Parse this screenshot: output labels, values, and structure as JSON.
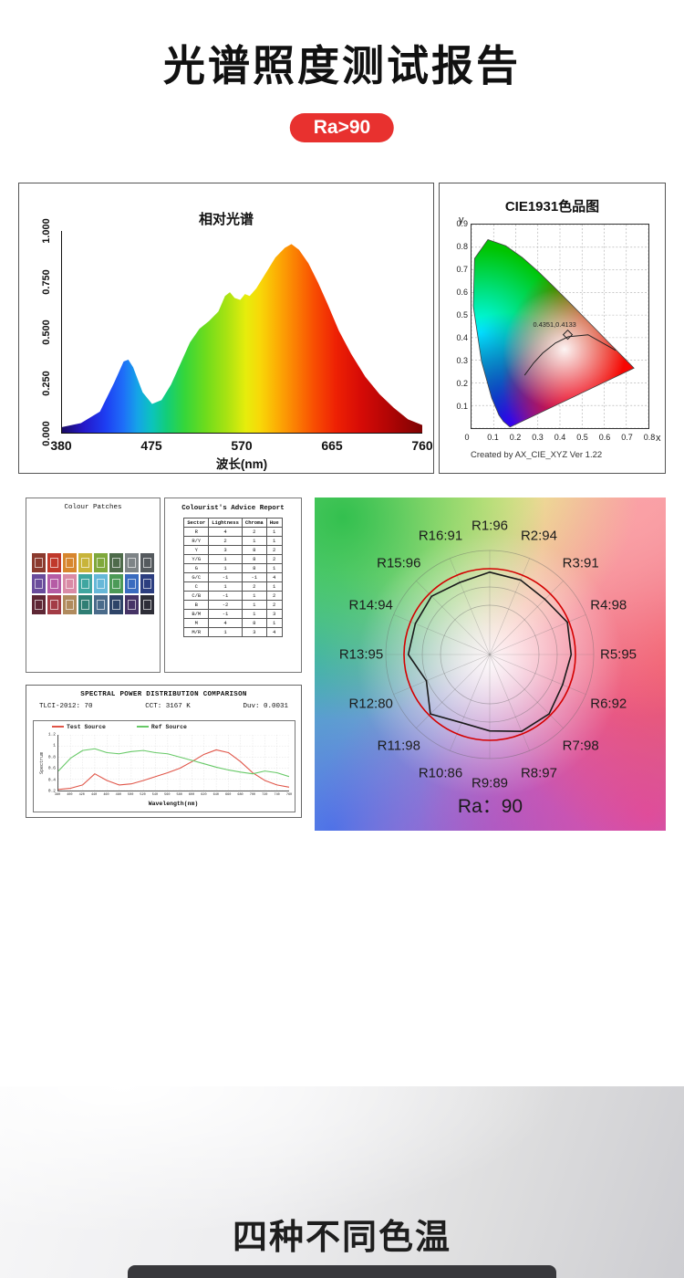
{
  "page": {
    "title": "光谱照度测试报告",
    "badge": "Ra>90",
    "bottom_title": "四种不同色温"
  },
  "spectrum_panel": {
    "title": "相对光谱",
    "xlabel": "波长(nm)",
    "x_ticks": [
      "380",
      "475",
      "570",
      "665",
      "760"
    ],
    "y_ticks": [
      "1.000",
      "0.750",
      "0.500",
      "0.250",
      "0.000"
    ]
  },
  "cie_panel": {
    "title": "CIE1931色品图",
    "y_axis_letter": "y",
    "x_axis_letter": "x",
    "y_ticks": [
      "0.9",
      "0.8",
      "0.7",
      "0.6",
      "0.5",
      "0.4",
      "0.3",
      "0.2",
      "0.1"
    ],
    "origin_tick": "0",
    "x_ticks": [
      "0.1",
      "0.2",
      "0.3",
      "0.4",
      "0.5",
      "0.6",
      "0.7",
      "0.8"
    ],
    "point_label": "0.4351,0.4133",
    "credit": "Created by AX_CIE_XYZ Ver 1.22"
  },
  "colour_patches": {
    "title": "Colour Patches",
    "colors": [
      "#8b3a2e",
      "#c0392b",
      "#d7862e",
      "#c8b43a",
      "#7fa83c",
      "#4e6b4a",
      "#7e8487",
      "#555a5e",
      "#6a4c9c",
      "#b55ca5",
      "#d98ba6",
      "#3fa6a0",
      "#66b8d8",
      "#4c9a57",
      "#3a6bbf",
      "#2c3e80",
      "#5e2735",
      "#a33c46",
      "#b08b5e",
      "#2f7e74",
      "#4a6b8a",
      "#2e4468",
      "#463366",
      "#2e2e38"
    ]
  },
  "advice_report": {
    "title": "Colourist's Advice Report",
    "headers": [
      "Sector",
      "Lightness",
      "Chroma",
      "Hue"
    ],
    "rows": [
      [
        "R",
        "4",
        "2",
        "1"
      ],
      [
        "R/Y",
        "2",
        "1",
        "1"
      ],
      [
        "Y",
        "3",
        "8",
        "2"
      ],
      [
        "Y/G",
        "1",
        "8",
        "2"
      ],
      [
        "G",
        "1",
        "8",
        "1"
      ],
      [
        "G/C",
        "-1",
        "-1",
        "4"
      ],
      [
        "C",
        "1",
        "2",
        "1"
      ],
      [
        "C/B",
        "-1",
        "1",
        "2"
      ],
      [
        "B",
        "-2",
        "1",
        "2"
      ],
      [
        "B/M",
        "-1",
        "1",
        "3"
      ],
      [
        "M",
        "4",
        "8",
        "1"
      ],
      [
        "M/R",
        "1",
        "3",
        "4"
      ]
    ]
  },
  "radar_panel": {
    "ra_label": "Ra：90",
    "ref_color": "#d40000",
    "test_color": "#1a1a1a",
    "labels": [
      "R1:96",
      "R2:94",
      "R3:91",
      "R4:98",
      "R5:95",
      "R6:92",
      "R7:98",
      "R8:97",
      "R9:89",
      "R10:86",
      "R11:98",
      "R12:80",
      "R13:95",
      "R14:94",
      "R15:96",
      "R16:91"
    ],
    "values": [
      96,
      94,
      91,
      98,
      95,
      92,
      98,
      97,
      89,
      86,
      98,
      80,
      95,
      94,
      96,
      91
    ]
  },
  "spd_panel": {
    "title": "SPECTRAL POWER DISTRIBUTION COMPARISON",
    "stats": [
      "TLCI-2012: 70",
      "CCT: 3167 K",
      "Duv: 0.0031"
    ],
    "legend": [
      {
        "name": "Test Source",
        "color": "#e05548"
      },
      {
        "name": "Ref Source",
        "color": "#67c967"
      }
    ],
    "ylabel": "Spectrum",
    "xlabel": "Wavelength(nm)",
    "y_ticks": [
      "1.2",
      "1",
      "0.8",
      "0.6",
      "0.4",
      "0.2"
    ],
    "x_ticks": [
      "380",
      "400",
      "420",
      "440",
      "460",
      "480",
      "500",
      "520",
      "540",
      "560",
      "580",
      "600",
      "620",
      "640",
      "660",
      "680",
      "700",
      "720",
      "740",
      "760"
    ]
  },
  "chart_data": [
    {
      "id": "relative-spectrum",
      "type": "area",
      "title": "相对光谱",
      "xlabel": "波长(nm)",
      "x": [
        380,
        400,
        420,
        435,
        445,
        450,
        455,
        465,
        475,
        485,
        495,
        505,
        515,
        525,
        535,
        545,
        552,
        557,
        562,
        568,
        573,
        578,
        585,
        595,
        605,
        615,
        622,
        630,
        640,
        650,
        660,
        672,
        685,
        700,
        715,
        730,
        745,
        760
      ],
      "values": [
        0.02,
        0.04,
        0.1,
        0.25,
        0.36,
        0.37,
        0.33,
        0.2,
        0.14,
        0.16,
        0.24,
        0.35,
        0.46,
        0.53,
        0.57,
        0.62,
        0.7,
        0.72,
        0.69,
        0.68,
        0.71,
        0.7,
        0.74,
        0.82,
        0.9,
        0.95,
        0.97,
        0.94,
        0.87,
        0.77,
        0.66,
        0.52,
        0.4,
        0.28,
        0.19,
        0.12,
        0.06,
        0.03
      ],
      "xlim": [
        380,
        760
      ],
      "ylim": [
        0,
        1
      ]
    },
    {
      "id": "cie1931",
      "type": "scatter",
      "title": "CIE1931色品图",
      "points": [
        {
          "x": 0.4351,
          "y": 0.4133
        }
      ],
      "xlim": [
        0,
        0.8
      ],
      "ylim": [
        0,
        0.9
      ]
    },
    {
      "id": "cri-radar",
      "type": "line",
      "subtype": "radar",
      "title": "Ra: 90",
      "categories": [
        "R1",
        "R2",
        "R3",
        "R4",
        "R5",
        "R6",
        "R7",
        "R8",
        "R9",
        "R10",
        "R11",
        "R12",
        "R13",
        "R14",
        "R15",
        "R16"
      ],
      "values": [
        96,
        94,
        91,
        98,
        95,
        92,
        98,
        97,
        89,
        86,
        98,
        80,
        95,
        94,
        96,
        91
      ],
      "ra": 90
    },
    {
      "id": "spd-comparison",
      "type": "line",
      "title": "SPECTRAL POWER DISTRIBUTION COMPARISON",
      "xlabel": "Wavelength(nm)",
      "ylabel": "Spectrum",
      "ylim": [
        0.2,
        1.2
      ],
      "x": [
        380,
        400,
        420,
        440,
        460,
        480,
        500,
        520,
        540,
        560,
        580,
        600,
        620,
        640,
        660,
        680,
        700,
        720,
        740,
        760
      ],
      "series": [
        {
          "name": "Test Source",
          "color": "#e05548",
          "values": [
            0.22,
            0.24,
            0.3,
            0.5,
            0.38,
            0.3,
            0.32,
            0.38,
            0.45,
            0.52,
            0.6,
            0.72,
            0.85,
            0.93,
            0.88,
            0.72,
            0.52,
            0.38,
            0.3,
            0.26
          ]
        },
        {
          "name": "Ref Source",
          "color": "#67c967",
          "values": [
            0.55,
            0.78,
            0.92,
            0.95,
            0.88,
            0.86,
            0.9,
            0.92,
            0.88,
            0.86,
            0.8,
            0.74,
            0.68,
            0.62,
            0.57,
            0.53,
            0.5,
            0.55,
            0.52,
            0.45
          ]
        }
      ]
    }
  ]
}
